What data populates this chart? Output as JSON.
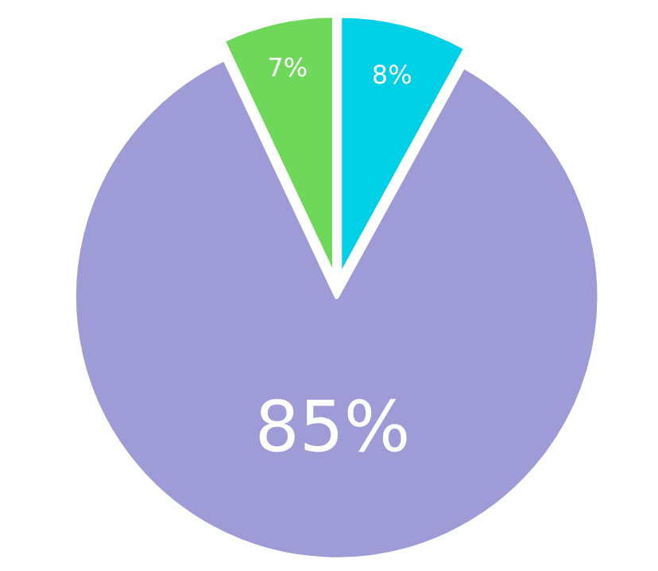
{
  "chart_data": {
    "type": "pie",
    "categories": [
      null,
      null,
      null
    ],
    "values": [
      8,
      85,
      7
    ],
    "colors": [
      "#00d0e6",
      "#9e9bd6",
      "#6fd85a"
    ],
    "value_labels": [
      "8%",
      "85%",
      "7%"
    ],
    "legend": false
  }
}
